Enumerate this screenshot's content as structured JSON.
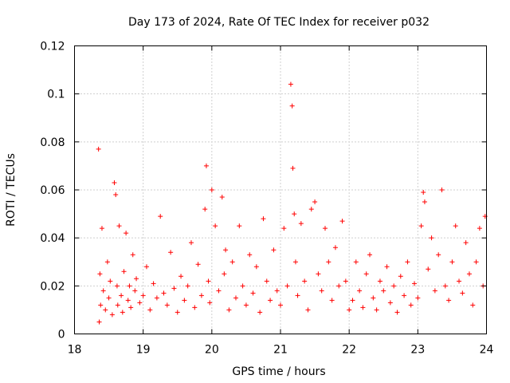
{
  "chart_data": {
    "type": "scatter",
    "title": "Day 173 of 2024, Rate Of TEC Index for receiver p032",
    "xlabel": "GPS time / hours",
    "ylabel": "ROTI / TECUs",
    "xlim": [
      18,
      24
    ],
    "ylim": [
      0,
      0.12
    ],
    "xticks": [
      "18",
      "19",
      "20",
      "21",
      "22",
      "23",
      "24"
    ],
    "yticks": [
      "0",
      "0.02",
      "0.04",
      "0.06",
      "0.08",
      "0.1",
      "0.12"
    ],
    "grid": true,
    "marker": "+",
    "color": "#ff0000",
    "series": [
      {
        "name": "ROTI",
        "x": [
          18.35,
          18.36,
          18.37,
          18.38,
          18.4,
          18.42,
          18.45,
          18.48,
          18.5,
          18.52,
          18.55,
          18.58,
          18.6,
          18.62,
          18.63,
          18.65,
          18.68,
          18.7,
          18.72,
          18.75,
          18.78,
          18.8,
          18.82,
          18.85,
          18.88,
          18.9,
          18.95,
          19.0,
          19.05,
          19.1,
          19.15,
          19.2,
          19.25,
          19.3,
          19.35,
          19.4,
          19.45,
          19.5,
          19.55,
          19.6,
          19.65,
          19.7,
          19.75,
          19.8,
          19.85,
          19.9,
          19.92,
          19.95,
          19.97,
          20.0,
          20.05,
          20.1,
          20.15,
          20.18,
          20.2,
          20.25,
          20.3,
          20.35,
          20.4,
          20.45,
          20.5,
          20.55,
          20.6,
          20.65,
          20.7,
          20.75,
          20.8,
          20.85,
          20.9,
          20.95,
          21.0,
          21.05,
          21.1,
          21.15,
          21.17,
          21.18,
          21.2,
          21.22,
          21.25,
          21.3,
          21.35,
          21.4,
          21.45,
          21.5,
          21.55,
          21.6,
          21.65,
          21.7,
          21.75,
          21.8,
          21.85,
          21.9,
          21.95,
          22.0,
          22.05,
          22.1,
          22.15,
          22.2,
          22.25,
          22.3,
          22.35,
          22.4,
          22.45,
          22.5,
          22.55,
          22.6,
          22.65,
          22.7,
          22.75,
          22.8,
          22.85,
          22.9,
          22.95,
          23.0,
          23.05,
          23.08,
          23.1,
          23.15,
          23.2,
          23.25,
          23.3,
          23.35,
          23.4,
          23.45,
          23.5,
          23.55,
          23.6,
          23.65,
          23.7,
          23.75,
          23.8,
          23.85,
          23.9,
          23.95,
          23.98
        ],
        "y": [
          0.077,
          0.005,
          0.025,
          0.012,
          0.044,
          0.018,
          0.01,
          0.03,
          0.015,
          0.022,
          0.008,
          0.063,
          0.058,
          0.02,
          0.012,
          0.045,
          0.016,
          0.009,
          0.026,
          0.042,
          0.014,
          0.02,
          0.011,
          0.033,
          0.018,
          0.023,
          0.013,
          0.016,
          0.028,
          0.01,
          0.021,
          0.015,
          0.049,
          0.017,
          0.012,
          0.034,
          0.019,
          0.009,
          0.024,
          0.014,
          0.02,
          0.038,
          0.011,
          0.029,
          0.016,
          0.052,
          0.07,
          0.022,
          0.013,
          0.06,
          0.045,
          0.018,
          0.057,
          0.025,
          0.035,
          0.01,
          0.03,
          0.015,
          0.045,
          0.02,
          0.012,
          0.033,
          0.017,
          0.028,
          0.009,
          0.048,
          0.022,
          0.014,
          0.035,
          0.018,
          0.012,
          0.044,
          0.02,
          0.104,
          0.095,
          0.069,
          0.05,
          0.03,
          0.016,
          0.046,
          0.022,
          0.01,
          0.052,
          0.055,
          0.025,
          0.018,
          0.044,
          0.03,
          0.014,
          0.036,
          0.02,
          0.047,
          0.022,
          0.01,
          0.014,
          0.03,
          0.018,
          0.011,
          0.025,
          0.033,
          0.015,
          0.01,
          0.022,
          0.018,
          0.028,
          0.013,
          0.02,
          0.009,
          0.024,
          0.016,
          0.03,
          0.012,
          0.021,
          0.015,
          0.045,
          0.059,
          0.055,
          0.027,
          0.04,
          0.018,
          0.033,
          0.06,
          0.02,
          0.014,
          0.03,
          0.045,
          0.022,
          0.017,
          0.038,
          0.025,
          0.012,
          0.03,
          0.044,
          0.02,
          0.049
        ]
      }
    ]
  }
}
